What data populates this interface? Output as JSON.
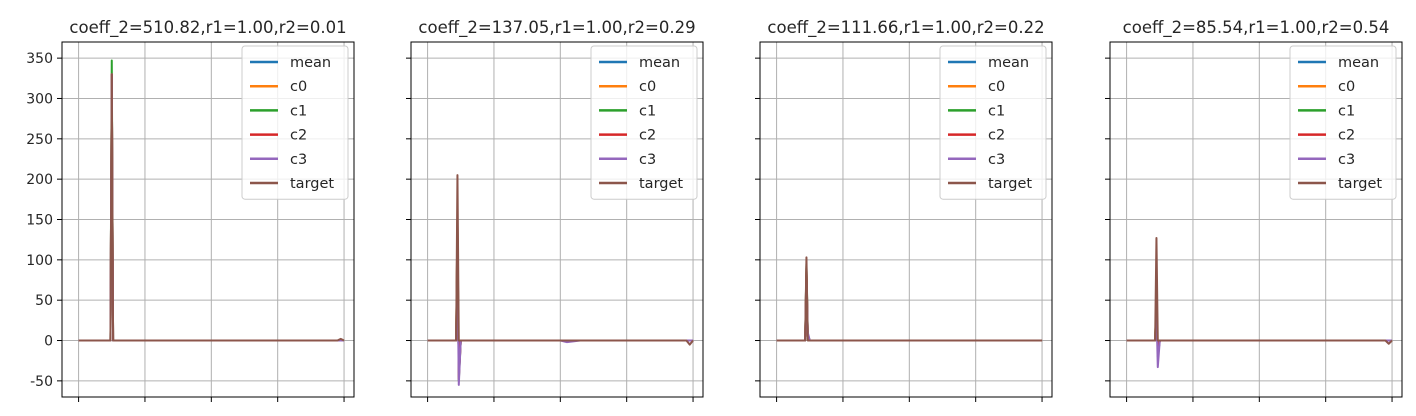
{
  "chart_data": [
    {
      "type": "line",
      "title": "coeff_2=510.82,r1=1.00,r2=0.01",
      "xlabel": "",
      "ylabel": "",
      "ylim": [
        -70,
        370
      ],
      "yticks": [
        -50,
        0,
        50,
        100,
        150,
        200,
        250,
        300,
        350
      ],
      "xlim": [
        -0.25,
        4.15
      ],
      "grid": true,
      "legend": "top-right",
      "series": [
        {
          "name": "mean",
          "color": "#1f77b4",
          "x": [
            0,
            0.45,
            0.48,
            0.5,
            0.52,
            0.55,
            4.0
          ],
          "y": [
            0,
            0,
            0,
            330,
            0,
            0,
            0
          ]
        },
        {
          "name": "c0",
          "color": "#ff7f0e",
          "x": [
            0,
            0.45,
            0.48,
            0.5,
            0.52,
            0.55,
            4.0
          ],
          "y": [
            0,
            0,
            0,
            330,
            0,
            0,
            0
          ]
        },
        {
          "name": "c1",
          "color": "#2ca02c",
          "x": [
            0,
            0.45,
            0.48,
            0.5,
            0.52,
            0.55,
            4.0
          ],
          "y": [
            0,
            0,
            0,
            347,
            0,
            0,
            0
          ]
        },
        {
          "name": "c2",
          "color": "#d62728",
          "x": [
            0,
            0.45,
            0.48,
            0.5,
            0.52,
            0.55,
            4.0
          ],
          "y": [
            0,
            0,
            0,
            330,
            0,
            0,
            0
          ]
        },
        {
          "name": "c3",
          "color": "#9467bd",
          "x": [
            0,
            0.45,
            0.48,
            0.5,
            0.52,
            0.55,
            4.0
          ],
          "y": [
            0,
            0,
            0,
            330,
            0,
            0,
            0
          ]
        },
        {
          "name": "target",
          "color": "#8c564b",
          "x": [
            0,
            0.45,
            0.48,
            0.5,
            0.52,
            0.55,
            3.9,
            3.95,
            4.0
          ],
          "y": [
            0,
            0,
            0,
            330,
            0,
            0,
            0,
            2,
            0
          ]
        }
      ]
    },
    {
      "type": "line",
      "title": "coeff_2=137.05,r1=1.00,r2=0.29",
      "xlabel": "",
      "ylabel": "",
      "ylim": [
        -70,
        370
      ],
      "yticks": [
        -50,
        0,
        50,
        100,
        150,
        200,
        250,
        300,
        350
      ],
      "xlim": [
        -0.25,
        4.15
      ],
      "grid": true,
      "legend": "top-right",
      "series": [
        {
          "name": "mean",
          "color": "#1f77b4",
          "x": [
            0,
            0.4,
            0.43,
            0.45,
            0.47,
            0.5,
            4.0
          ],
          "y": [
            0,
            0,
            0,
            120,
            -40,
            0,
            0
          ]
        },
        {
          "name": "c0",
          "color": "#ff7f0e",
          "x": [
            0,
            0.4,
            0.43,
            0.45,
            0.47,
            0.5,
            4.0
          ],
          "y": [
            0,
            0,
            0,
            140,
            -45,
            0,
            0
          ]
        },
        {
          "name": "c1",
          "color": "#2ca02c",
          "x": [
            0,
            0.4,
            0.43,
            0.45,
            0.47,
            0.5,
            4.0
          ],
          "y": [
            0,
            0,
            0,
            150,
            -50,
            0,
            0
          ]
        },
        {
          "name": "c2",
          "color": "#d62728",
          "x": [
            0,
            0.4,
            0.43,
            0.45,
            0.47,
            0.5,
            4.0
          ],
          "y": [
            0,
            0,
            0,
            150,
            -48,
            0,
            0
          ]
        },
        {
          "name": "c3",
          "color": "#9467bd",
          "x": [
            0,
            0.4,
            0.43,
            0.45,
            0.47,
            0.5,
            2.0,
            2.1,
            2.3,
            4.0
          ],
          "y": [
            0,
            0,
            0,
            100,
            -55,
            0,
            0,
            -2,
            0,
            0
          ]
        },
        {
          "name": "target",
          "color": "#8c564b",
          "x": [
            0,
            0.4,
            0.43,
            0.45,
            0.47,
            0.5,
            3.9,
            3.95,
            4.0
          ],
          "y": [
            0,
            0,
            0,
            205,
            0,
            0,
            0,
            -5,
            0
          ]
        }
      ]
    },
    {
      "type": "line",
      "title": "coeff_2=111.66,r1=1.00,r2=0.22",
      "xlabel": "",
      "ylabel": "",
      "ylim": [
        -70,
        370
      ],
      "yticks": [
        -50,
        0,
        50,
        100,
        150,
        200,
        250,
        300,
        350
      ],
      "xlim": [
        -0.25,
        4.15
      ],
      "grid": true,
      "legend": "top-right",
      "series": [
        {
          "name": "mean",
          "color": "#1f77b4",
          "x": [
            0,
            0.4,
            0.43,
            0.45,
            0.47,
            0.5,
            4.0
          ],
          "y": [
            0,
            0,
            0,
            90,
            5,
            0,
            0
          ]
        },
        {
          "name": "c0",
          "color": "#ff7f0e",
          "x": [
            0,
            0.4,
            0.43,
            0.45,
            0.47,
            0.5,
            4.0
          ],
          "y": [
            0,
            0,
            0,
            85,
            5,
            0,
            0
          ]
        },
        {
          "name": "c1",
          "color": "#2ca02c",
          "x": [
            0,
            0.4,
            0.43,
            0.45,
            0.47,
            0.5,
            4.0
          ],
          "y": [
            0,
            0,
            0,
            95,
            8,
            0,
            0
          ]
        },
        {
          "name": "c2",
          "color": "#d62728",
          "x": [
            0,
            0.4,
            0.43,
            0.45,
            0.47,
            0.5,
            4.0
          ],
          "y": [
            0,
            0,
            0,
            92,
            6,
            0,
            0
          ]
        },
        {
          "name": "c3",
          "color": "#9467bd",
          "x": [
            0,
            0.4,
            0.43,
            0.45,
            0.47,
            0.5,
            4.0
          ],
          "y": [
            0,
            0,
            0,
            80,
            10,
            0,
            0
          ]
        },
        {
          "name": "target",
          "color": "#8c564b",
          "x": [
            0,
            0.4,
            0.43,
            0.45,
            0.47,
            0.5,
            4.0
          ],
          "y": [
            0,
            0,
            0,
            103,
            0,
            0,
            0
          ]
        }
      ]
    },
    {
      "type": "line",
      "title": "coeff_2=85.54,r1=1.00,r2=0.54",
      "xlabel": "",
      "ylabel": "",
      "ylim": [
        -70,
        370
      ],
      "yticks": [
        -50,
        0,
        50,
        100,
        150,
        200,
        250,
        300,
        350
      ],
      "xlim": [
        -0.25,
        4.15
      ],
      "grid": true,
      "legend": "top-right",
      "series": [
        {
          "name": "mean",
          "color": "#1f77b4",
          "x": [
            0,
            0.4,
            0.43,
            0.45,
            0.47,
            0.5,
            4.0
          ],
          "y": [
            0,
            0,
            0,
            50,
            -15,
            0,
            0
          ]
        },
        {
          "name": "c0",
          "color": "#ff7f0e",
          "x": [
            0,
            0.4,
            0.43,
            0.45,
            0.47,
            0.5,
            4.0
          ],
          "y": [
            0,
            0,
            0,
            55,
            -18,
            0,
            0
          ]
        },
        {
          "name": "c1",
          "color": "#2ca02c",
          "x": [
            0,
            0.4,
            0.43,
            0.45,
            0.47,
            0.5,
            4.0
          ],
          "y": [
            0,
            0,
            0,
            60,
            -20,
            0,
            0
          ]
        },
        {
          "name": "c2",
          "color": "#d62728",
          "x": [
            0,
            0.4,
            0.43,
            0.45,
            0.47,
            0.5,
            4.0
          ],
          "y": [
            0,
            0,
            0,
            58,
            -18,
            0,
            0
          ]
        },
        {
          "name": "c3",
          "color": "#9467bd",
          "x": [
            0,
            0.4,
            0.43,
            0.45,
            0.47,
            0.5,
            4.0
          ],
          "y": [
            0,
            0,
            0,
            40,
            -33,
            0,
            0
          ]
        },
        {
          "name": "target",
          "color": "#8c564b",
          "x": [
            0,
            0.4,
            0.43,
            0.45,
            0.47,
            0.5,
            3.9,
            3.95,
            4.0
          ],
          "y": [
            0,
            0,
            0,
            127,
            0,
            0,
            0,
            -4,
            0
          ]
        }
      ]
    }
  ]
}
